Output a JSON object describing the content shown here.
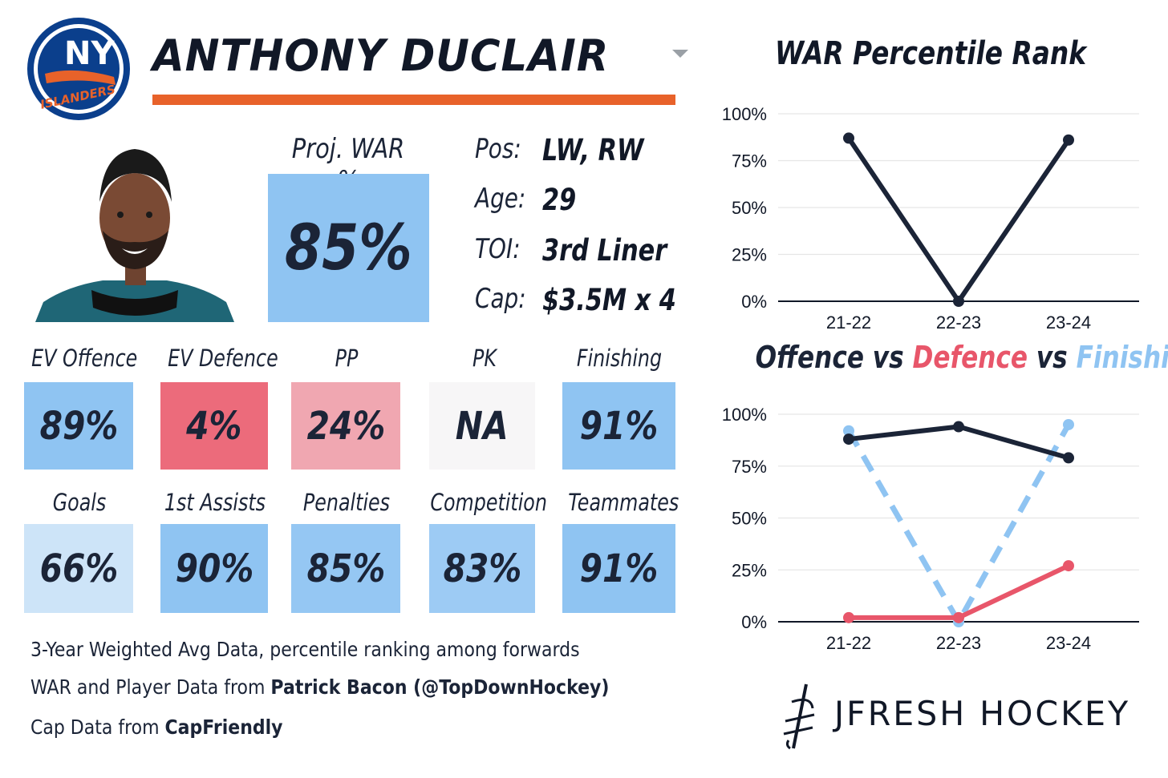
{
  "header": {
    "player_name": "ANTHONY DUCLAIR",
    "team_logo_text": "NY",
    "team_logo_subtext": "ISLANDERS"
  },
  "war": {
    "label": "Proj. WAR %",
    "value": "85%"
  },
  "info": [
    {
      "label": "Pos:",
      "value": "LW, RW"
    },
    {
      "label": "Age:",
      "value": "29"
    },
    {
      "label": "TOI:",
      "value": "3rd Liner"
    },
    {
      "label": "Cap:",
      "value": "$3.5M x 4"
    }
  ],
  "stats_row1": [
    {
      "label": "EV Offence",
      "value": "89%",
      "color": "#8fc4f2"
    },
    {
      "label": "EV Defence",
      "value": "4%",
      "color": "#ec6b7b"
    },
    {
      "label": "PP",
      "value": "24%",
      "color": "#f0a7b1"
    },
    {
      "label": "PK",
      "value": "NA",
      "color": "#f7f6f7"
    },
    {
      "label": "Finishing",
      "value": "91%",
      "color": "#8fc4f2"
    }
  ],
  "stats_row2": [
    {
      "label": "Goals",
      "value": "66%",
      "color": "#cde4f8"
    },
    {
      "label": "1st Assists",
      "value": "90%",
      "color": "#8fc4f2"
    },
    {
      "label": "Penalties",
      "value": "85%",
      "color": "#95c7f3"
    },
    {
      "label": "Competition",
      "value": "83%",
      "color": "#9dcbf4"
    },
    {
      "label": "Teammates",
      "value": "91%",
      "color": "#8fc4f2"
    }
  ],
  "notes": {
    "line1": "3-Year Weighted Avg Data, percentile ranking among forwards",
    "line2_prefix": "WAR and Player Data from ",
    "line2_bold": "Patrick Bacon (@TopDownHockey)",
    "line3_prefix": "Cap Data from ",
    "line3_bold": "CapFriendly"
  },
  "brand": "JFRESH HOCKEY",
  "colors": {
    "accent_orange": "#e8622a",
    "navy": "#1b2437",
    "red": "#e8566a",
    "light_blue": "#8fc4f2"
  },
  "chart_data": [
    {
      "type": "line",
      "title": "WAR Percentile Rank",
      "categories": [
        "21-22",
        "22-23",
        "23-24"
      ],
      "yticks": [
        "0%",
        "25%",
        "50%",
        "75%",
        "100%"
      ],
      "ylim": [
        0,
        100
      ],
      "grid": true,
      "series": [
        {
          "values": [
            87,
            0,
            86
          ],
          "color": "#1b2437",
          "style": "solid"
        }
      ]
    },
    {
      "type": "line",
      "title_parts": [
        {
          "text": "Offence",
          "color": "#1b2437"
        },
        {
          "text": " vs ",
          "color": "#1b2437"
        },
        {
          "text": "Defence",
          "color": "#e8566a"
        },
        {
          "text": " vs ",
          "color": "#1b2437"
        },
        {
          "text": "Finishing",
          "color": "#8fc4f2"
        }
      ],
      "categories": [
        "21-22",
        "22-23",
        "23-24"
      ],
      "yticks": [
        "0%",
        "25%",
        "50%",
        "75%",
        "100%"
      ],
      "ylim": [
        0,
        100
      ],
      "grid": true,
      "series": [
        {
          "name": "Offence",
          "values": [
            88,
            94,
            79
          ],
          "color": "#1b2437",
          "style": "solid"
        },
        {
          "name": "Defence",
          "values": [
            2,
            2,
            27
          ],
          "color": "#e8566a",
          "style": "solid"
        },
        {
          "name": "Finishing",
          "values": [
            92,
            0,
            95
          ],
          "color": "#8fc4f2",
          "style": "dashed"
        }
      ]
    }
  ]
}
